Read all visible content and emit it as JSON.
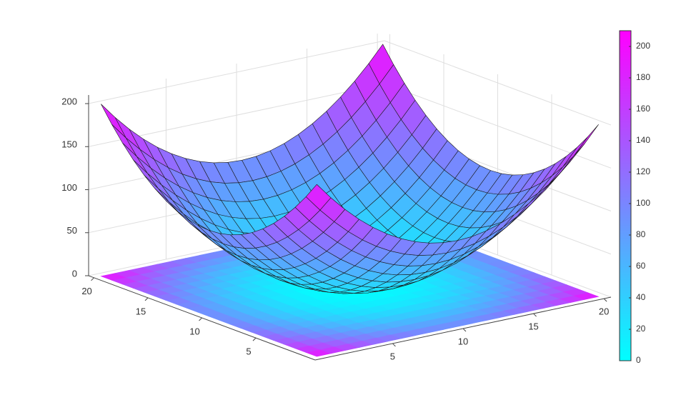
{
  "chart_data": {
    "type": "surface",
    "x": [
      0,
      1,
      2,
      3,
      4,
      5,
      6,
      7,
      8,
      9,
      10,
      11,
      12,
      13,
      14,
      15,
      16,
      17,
      18,
      19,
      20
    ],
    "y": [
      0,
      1,
      2,
      3,
      4,
      5,
      6,
      7,
      8,
      9,
      10,
      11,
      12,
      13,
      14,
      15,
      16,
      17,
      18,
      19,
      20
    ],
    "z": [
      [
        200,
        181,
        164,
        149,
        136,
        125,
        116,
        109,
        104,
        101,
        100,
        101,
        104,
        109,
        116,
        125,
        136,
        149,
        164,
        181,
        200
      ],
      [
        181,
        162,
        145,
        130,
        117,
        106,
        97,
        90,
        85,
        82,
        81,
        82,
        85,
        90,
        97,
        106,
        117,
        130,
        145,
        162,
        181
      ],
      [
        164,
        145,
        128,
        113,
        100,
        89,
        80,
        73,
        68,
        65,
        64,
        65,
        68,
        73,
        80,
        89,
        100,
        113,
        128,
        145,
        164
      ],
      [
        149,
        130,
        113,
        98,
        85,
        74,
        65,
        58,
        53,
        50,
        49,
        50,
        53,
        58,
        65,
        74,
        85,
        98,
        113,
        130,
        149
      ],
      [
        136,
        117,
        100,
        85,
        72,
        61,
        52,
        45,
        40,
        37,
        36,
        37,
        40,
        45,
        52,
        61,
        72,
        85,
        100,
        117,
        136
      ],
      [
        125,
        106,
        89,
        74,
        61,
        50,
        41,
        34,
        29,
        26,
        25,
        26,
        29,
        34,
        41,
        50,
        61,
        74,
        89,
        106,
        125
      ],
      [
        116,
        97,
        80,
        65,
        52,
        41,
        32,
        25,
        20,
        17,
        16,
        17,
        20,
        25,
        32,
        41,
        52,
        65,
        80,
        97,
        116
      ],
      [
        109,
        90,
        73,
        58,
        45,
        34,
        25,
        18,
        13,
        10,
        9,
        10,
        13,
        18,
        25,
        34,
        45,
        58,
        73,
        90,
        109
      ],
      [
        104,
        85,
        68,
        53,
        40,
        29,
        20,
        13,
        8,
        5,
        4,
        5,
        8,
        13,
        20,
        29,
        40,
        53,
        68,
        85,
        104
      ],
      [
        101,
        82,
        65,
        50,
        37,
        26,
        17,
        10,
        5,
        2,
        1,
        2,
        5,
        10,
        17,
        26,
        37,
        50,
        65,
        82,
        101
      ],
      [
        100,
        81,
        64,
        49,
        36,
        25,
        16,
        9,
        4,
        1,
        0,
        1,
        4,
        9,
        16,
        25,
        36,
        49,
        64,
        81,
        100
      ],
      [
        101,
        82,
        65,
        50,
        37,
        26,
        17,
        10,
        5,
        2,
        1,
        2,
        5,
        10,
        17,
        26,
        37,
        50,
        65,
        82,
        101
      ],
      [
        104,
        85,
        68,
        53,
        40,
        29,
        20,
        13,
        8,
        5,
        4,
        5,
        8,
        13,
        20,
        29,
        40,
        53,
        68,
        85,
        104
      ],
      [
        109,
        90,
        73,
        58,
        45,
        34,
        25,
        18,
        13,
        10,
        9,
        10,
        13,
        18,
        25,
        34,
        45,
        58,
        73,
        90,
        109
      ],
      [
        116,
        97,
        80,
        65,
        52,
        41,
        32,
        25,
        20,
        17,
        16,
        17,
        20,
        25,
        32,
        41,
        52,
        65,
        80,
        97,
        116
      ],
      [
        125,
        106,
        89,
        74,
        61,
        50,
        41,
        34,
        29,
        26,
        25,
        26,
        29,
        34,
        41,
        50,
        61,
        74,
        89,
        106,
        125
      ],
      [
        136,
        117,
        100,
        85,
        72,
        61,
        52,
        45,
        40,
        37,
        36,
        37,
        40,
        45,
        52,
        61,
        72,
        85,
        100,
        117,
        136
      ],
      [
        149,
        130,
        113,
        98,
        85,
        74,
        65,
        58,
        53,
        50,
        49,
        50,
        53,
        58,
        65,
        74,
        85,
        98,
        113,
        130,
        149
      ],
      [
        164,
        145,
        128,
        113,
        100,
        89,
        80,
        73,
        68,
        65,
        64,
        65,
        68,
        73,
        80,
        89,
        100,
        113,
        128,
        145,
        164
      ],
      [
        181,
        162,
        145,
        130,
        117,
        106,
        97,
        90,
        85,
        82,
        81,
        82,
        85,
        90,
        97,
        106,
        117,
        130,
        145,
        162,
        181
      ],
      [
        200,
        181,
        164,
        149,
        136,
        125,
        116,
        109,
        104,
        101,
        100,
        101,
        104,
        109,
        116,
        125,
        136,
        149,
        164,
        181,
        200
      ]
    ],
    "xlim": [
      -0.5,
      20.5
    ],
    "ylim": [
      -0.5,
      20.5
    ],
    "zlim": [
      0,
      210
    ],
    "xticks": [
      5,
      10,
      15,
      20
    ],
    "yticks": [
      5,
      10,
      15,
      20
    ],
    "zticks": [
      0,
      50,
      100,
      150,
      200
    ],
    "grid": true,
    "floor_projection": true,
    "colormap": [
      "#00ffff",
      "#ff00ff"
    ],
    "colorbar": {
      "lim": [
        0,
        210
      ],
      "ticks": [
        0,
        20,
        40,
        60,
        80,
        100,
        120,
        140,
        160,
        180,
        200
      ]
    }
  }
}
